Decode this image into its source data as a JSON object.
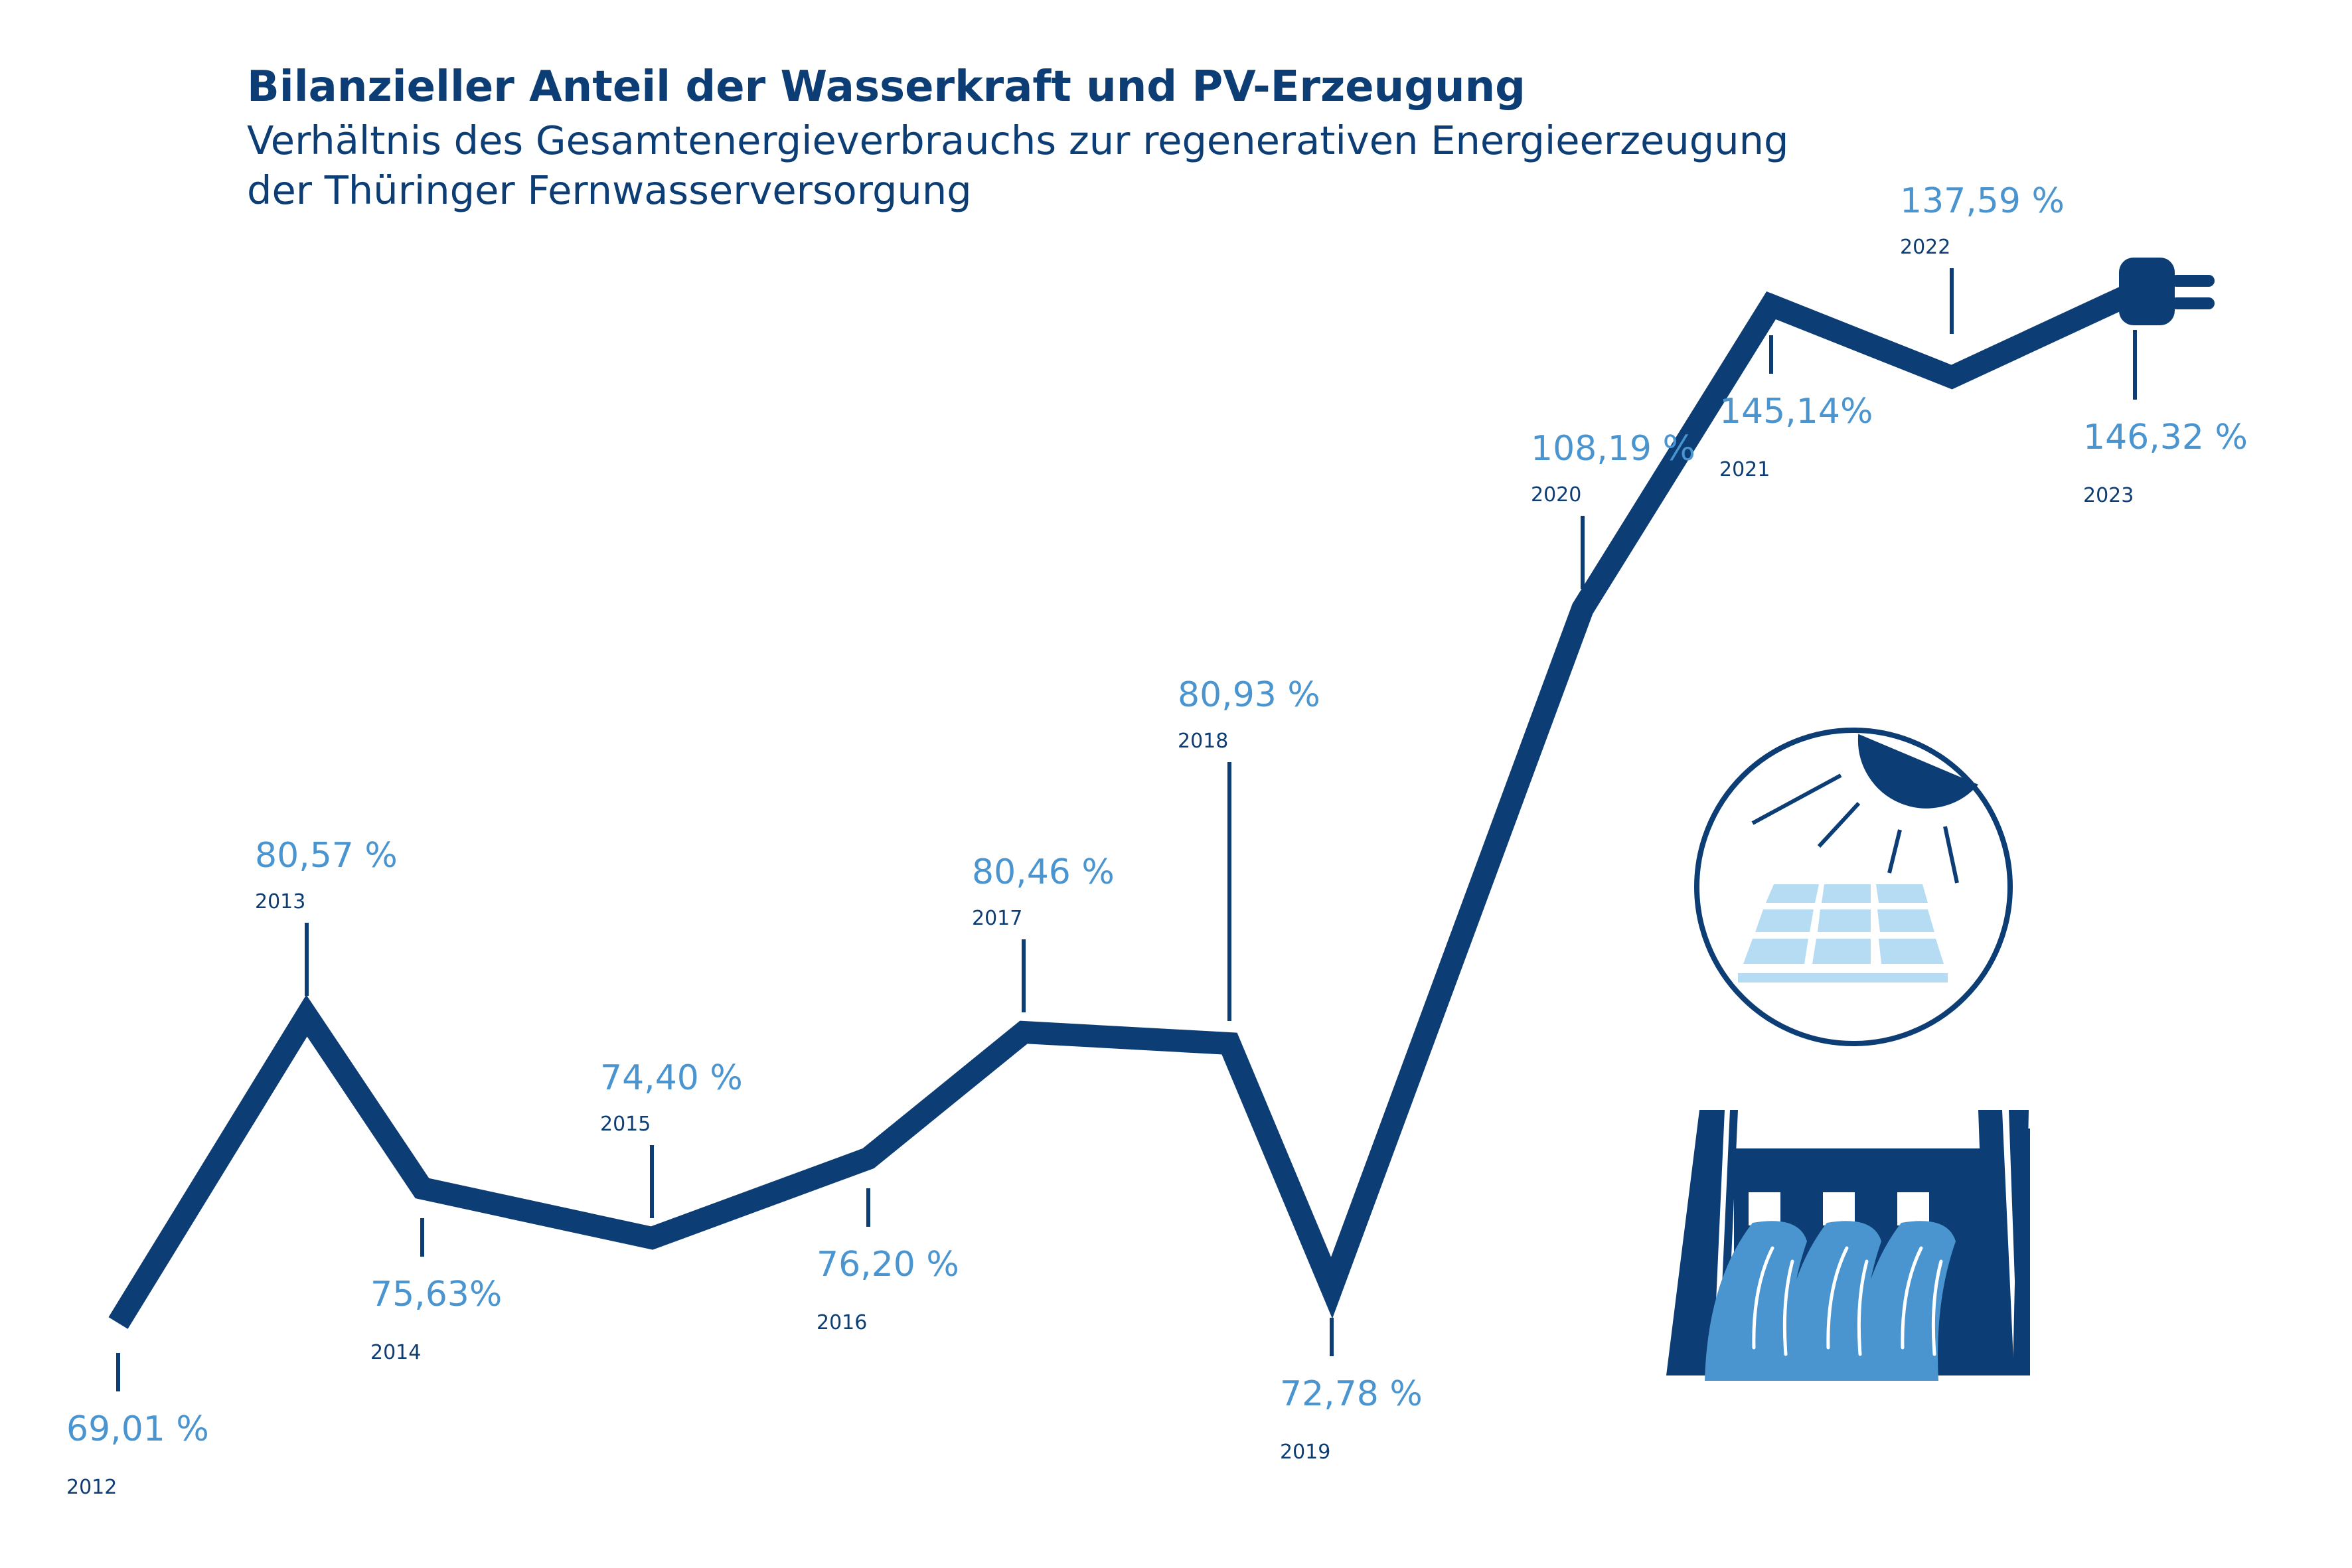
{
  "header": {
    "title": "Bilanzieller Anteil der Wasserkraft und PV-Erzeugung",
    "subtitle_line1": "Verhältnis des Gesamtenergieverbrauchs zur regenerativen Energieerzeugung",
    "subtitle_line2": "der Thüringer Fernwasserversorgung"
  },
  "colors": {
    "line": "#0d3d75",
    "value_label": "#4a95cf",
    "year_label": "#0d3d75",
    "light_blue": "#b6dcf4",
    "mid_blue": "#4a95cf"
  },
  "icons": [
    "plug-icon",
    "solar-panel-icon",
    "hydro-dam-icon"
  ],
  "chart_data": {
    "type": "line",
    "title": "Bilanzieller Anteil der Wasserkraft und PV-Erzeugung",
    "xlabel": "",
    "ylabel": "",
    "grid": false,
    "legend": "none",
    "categories": [
      "2012",
      "2013",
      "2014",
      "2015",
      "2016",
      "2017",
      "2018",
      "2019",
      "2020",
      "2021",
      "2022",
      "2023"
    ],
    "values": [
      69.01,
      80.57,
      75.63,
      74.4,
      76.2,
      80.46,
      80.93,
      72.78,
      108.19,
      145.14,
      137.59,
      146.32
    ],
    "value_labels": [
      "69,01 %",
      "80,57 %",
      "75,63%",
      "74,40 %",
      "76,20 %",
      "80,46 %",
      "80,93 %",
      "72,78 %",
      "108,19 %",
      "145,14%",
      "137,59 %",
      "146,32 %"
    ],
    "label_position": [
      "below",
      "above",
      "below",
      "above",
      "below",
      "above",
      "above",
      "below",
      "above",
      "below",
      "above",
      "below"
    ],
    "unit": "%"
  }
}
